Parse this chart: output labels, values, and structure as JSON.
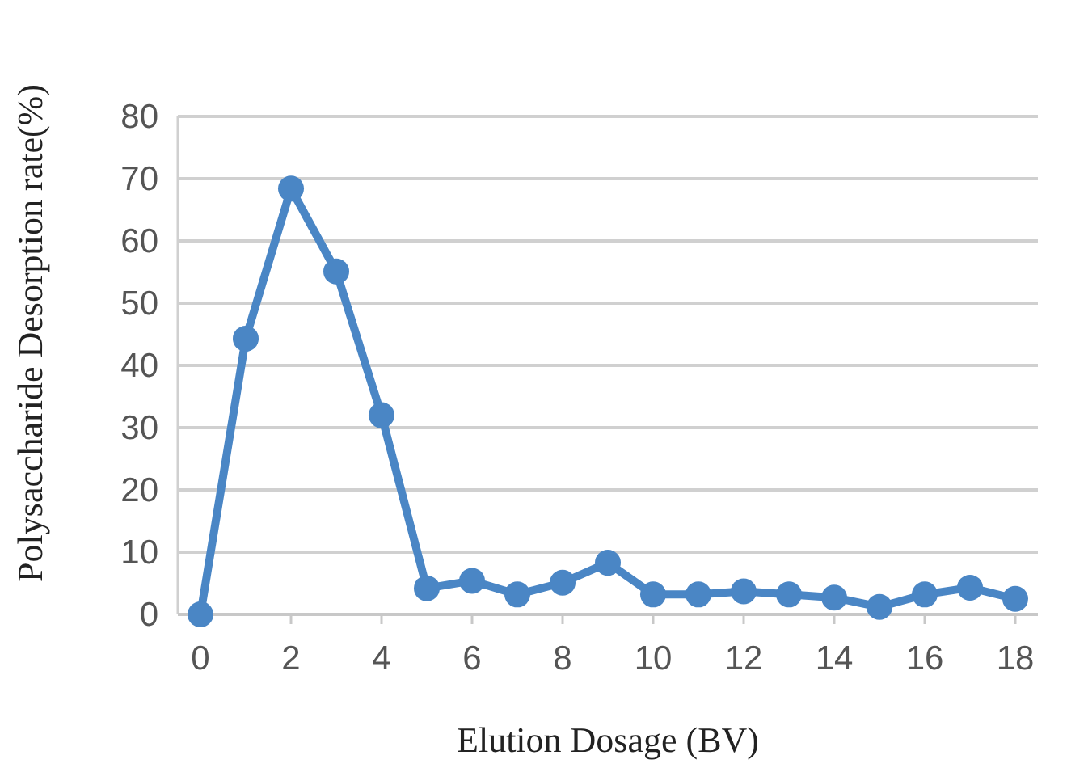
{
  "chart_data": {
    "type": "line",
    "xlabel": "Elution Dosage (BV)",
    "ylabel": "Polysaccharide Desorption rate(%)",
    "x": [
      0,
      1,
      2,
      3,
      4,
      5,
      6,
      7,
      8,
      9,
      10,
      11,
      12,
      13,
      14,
      15,
      16,
      17,
      18
    ],
    "series": [
      {
        "color": "#4a86c5",
        "values": [
          0,
          44.3,
          68.4,
          55.1,
          32,
          4.2,
          5.4,
          3.2,
          5.1,
          8.3,
          3.2,
          3.2,
          3.7,
          3.2,
          2.7,
          1.2,
          3.2,
          4.3,
          2.5
        ]
      }
    ],
    "xlim": [
      -0.5,
      18.5
    ],
    "xticks": [
      0,
      2,
      4,
      6,
      8,
      10,
      12,
      14,
      16,
      18
    ],
    "ylim": [
      0,
      80
    ],
    "yticks": [
      0,
      10,
      20,
      30,
      40,
      50,
      60,
      70,
      80
    ],
    "grid": "y",
    "marker": "circle",
    "line_style": "solid"
  }
}
